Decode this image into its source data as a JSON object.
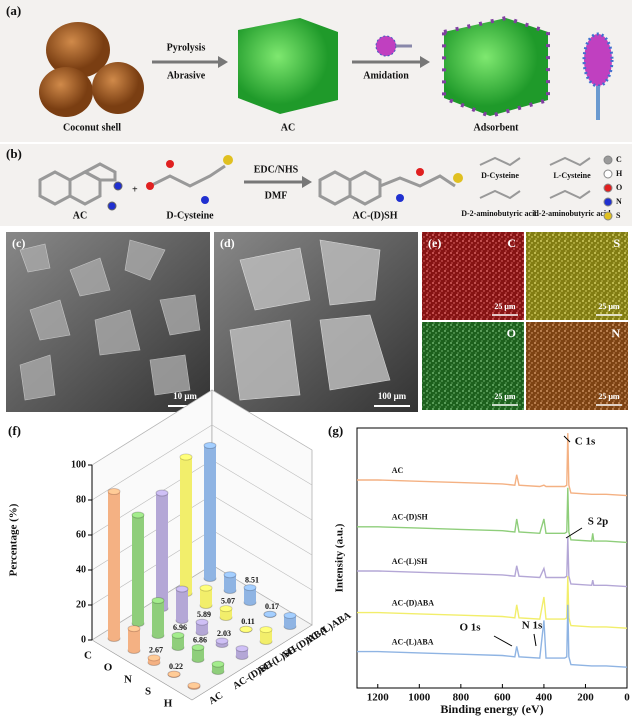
{
  "panel_a": {
    "label": "(a)",
    "steps": [
      "Pyrolysis",
      "Abrasive",
      "Amidation"
    ],
    "items": [
      "Coconut shell",
      "AC",
      "Adsorbent"
    ]
  },
  "panel_b": {
    "label": "(b)",
    "plus": "+",
    "reagents": [
      "EDC/NHS",
      "DMF"
    ],
    "molecules": [
      "AC",
      "D-Cysteine",
      "AC-(D)SH"
    ],
    "structures": [
      "D-Cysteine",
      "L-Cysteine",
      "D-2-aminobutyric acid",
      "L-2-aminobutyric acid"
    ],
    "legend": [
      {
        "name": "C",
        "color": "#9a9a9a"
      },
      {
        "name": "H",
        "color": "#ffffff"
      },
      {
        "name": "O",
        "color": "#e02020"
      },
      {
        "name": "N",
        "color": "#2030d0"
      },
      {
        "name": "S",
        "color": "#e0c020"
      }
    ]
  },
  "panel_c": {
    "label": "(c)",
    "scale": "10 μm"
  },
  "panel_d": {
    "label": "(d)",
    "scale": "100 μm"
  },
  "panel_e": {
    "label": "(e)",
    "maps": [
      {
        "element": "C",
        "scale": "25 μm",
        "color": "#e02020"
      },
      {
        "element": "S",
        "scale": "25 μm",
        "color": "#d8d020"
      },
      {
        "element": "O",
        "scale": "25 μm",
        "color": "#30a030"
      },
      {
        "element": "N",
        "scale": "25 μm",
        "color": "#d07020"
      }
    ]
  },
  "chart_data": [
    {
      "type": "bar3d",
      "panel_label": "(f)",
      "ylabel": "Percentage (%)",
      "categories": [
        "C",
        "O",
        "N",
        "S",
        "H"
      ],
      "series": [
        {
          "name": "AC",
          "color": "#f4b183",
          "values": [
            84,
            12.5,
            2.67,
            0.22,
            0.6
          ],
          "value_labels": [
            null,
            null,
            "2.67",
            "0.22",
            null
          ]
        },
        {
          "name": "AC-(D)SH",
          "color": "#8fce7b",
          "values": [
            62,
            20,
            6.96,
            6.86,
            4.2
          ],
          "value_labels": [
            null,
            null,
            "6.96",
            "6.86",
            null
          ]
        },
        {
          "name": "AC-(L)SH",
          "color": "#b4a7d6",
          "values": [
            66,
            18,
            5.89,
            2.03,
            4.5
          ],
          "value_labels": [
            null,
            null,
            "5.89",
            "2.03",
            null
          ]
        },
        {
          "name": "AC-(D)ABA",
          "color": "#f2ee6b",
          "values": [
            78,
            10,
            5.07,
            0.11,
            6.8
          ],
          "value_labels": [
            null,
            null,
            "5.07",
            "0.11",
            null
          ]
        },
        {
          "name": "AC-(L)ABA",
          "color": "#8fb4e3",
          "values": [
            76,
            9,
            8.51,
            0.17,
            6.3
          ],
          "value_labels": [
            null,
            null,
            "8.51",
            "0.17",
            null
          ]
        }
      ],
      "ylim": [
        0,
        100
      ],
      "yticks": [
        0,
        20,
        40,
        60,
        80,
        100
      ],
      "grid": true
    },
    {
      "type": "line",
      "panel_label": "(g)",
      "xlabel": "Binding energy (eV)",
      "ylabel": "Intensity (a.u.)",
      "x": [
        1300,
        1200,
        1000,
        800,
        600,
        540,
        531,
        520,
        420,
        400,
        390,
        300,
        290,
        285,
        280,
        270,
        170,
        165,
        160,
        100,
        0
      ],
      "series": [
        {
          "name": "AC",
          "color": "#f4b183",
          "values": [
            8.0,
            8.0,
            7.95,
            7.9,
            7.85,
            7.8,
            8.2,
            7.8,
            7.75,
            7.8,
            7.75,
            7.75,
            7.8,
            9.8,
            7.8,
            7.5,
            7.45,
            7.45,
            7.45,
            7.45,
            7.4
          ]
        },
        {
          "name": "AC-(D)SH",
          "color": "#8fce7b",
          "values": [
            6.2,
            6.2,
            6.15,
            6.1,
            6.05,
            6.0,
            6.5,
            6.0,
            5.95,
            6.5,
            5.95,
            5.95,
            6.0,
            7.7,
            6.0,
            5.7,
            5.65,
            5.95,
            5.65,
            5.65,
            5.6
          ]
        },
        {
          "name": "AC-(L)SH",
          "color": "#b4a7d6",
          "values": [
            4.5,
            4.5,
            4.45,
            4.4,
            4.35,
            4.3,
            4.7,
            4.3,
            4.25,
            4.6,
            4.25,
            4.25,
            4.3,
            5.8,
            4.3,
            4.0,
            3.95,
            4.15,
            3.95,
            3.95,
            3.9
          ]
        },
        {
          "name": "AC-(D)ABA",
          "color": "#f2ee6b",
          "values": [
            2.9,
            2.9,
            2.85,
            2.8,
            2.75,
            2.7,
            3.2,
            2.7,
            2.65,
            3.5,
            2.65,
            2.65,
            2.7,
            4.3,
            2.7,
            2.4,
            2.35,
            2.35,
            2.35,
            2.35,
            2.3
          ]
        },
        {
          "name": "AC-(L)ABA",
          "color": "#8fb4e3",
          "values": [
            1.4,
            1.4,
            1.35,
            1.3,
            1.25,
            1.2,
            1.6,
            1.2,
            1.15,
            2.6,
            1.15,
            1.15,
            1.2,
            3.2,
            1.2,
            0.9,
            0.85,
            0.85,
            0.85,
            0.85,
            0.8
          ]
        }
      ],
      "annotations": [
        "C 1s",
        "S 2p",
        "O 1s",
        "N 1s"
      ],
      "xlim": [
        1300,
        0
      ],
      "xticks": [
        1200,
        1000,
        800,
        600,
        400,
        200,
        0
      ],
      "ylim": [
        0,
        10
      ]
    }
  ]
}
